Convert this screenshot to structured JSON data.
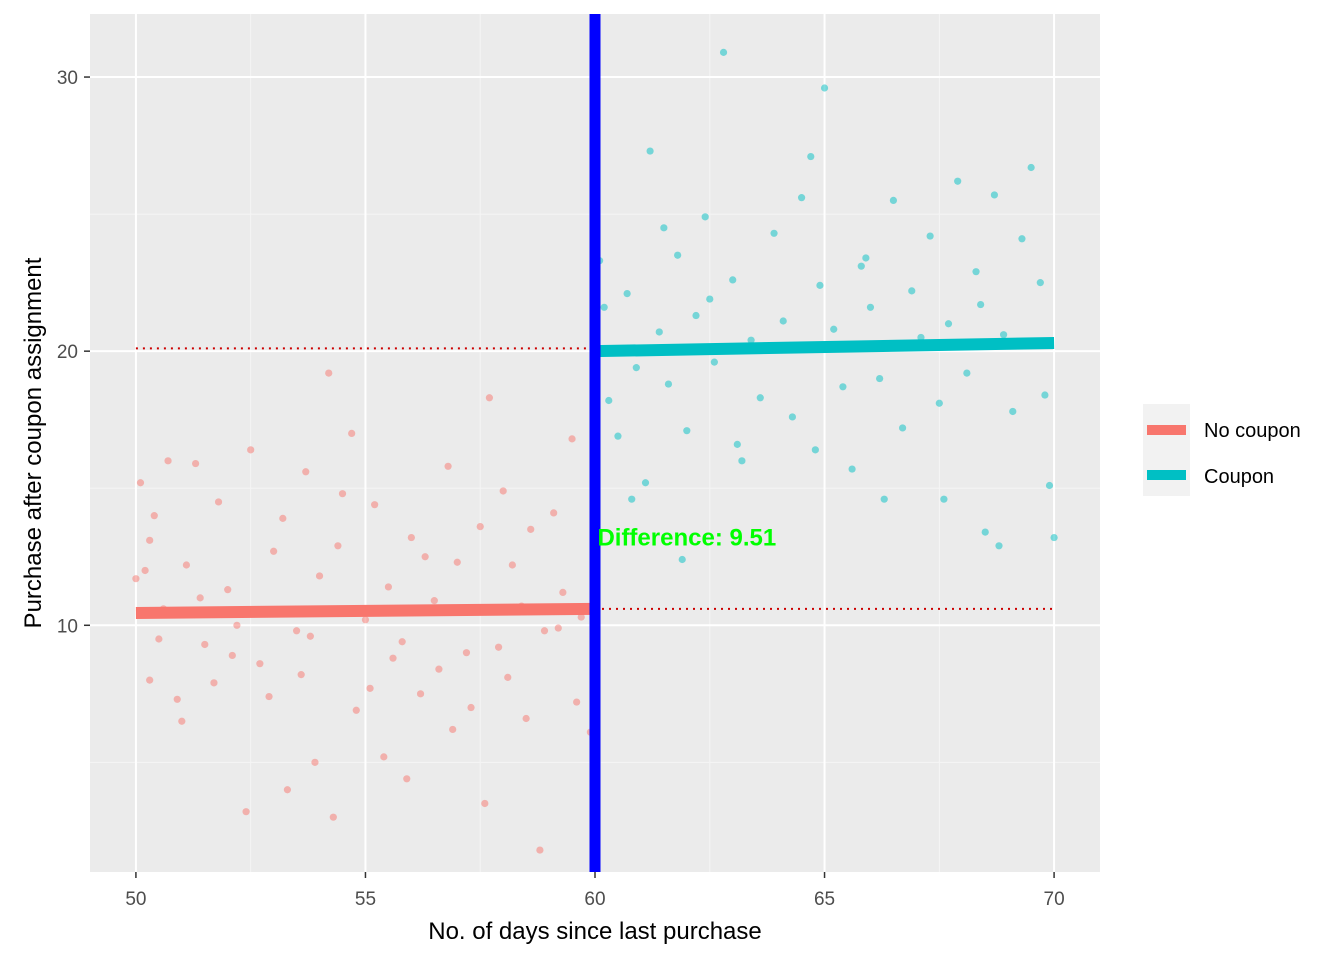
{
  "chart_data": {
    "type": "scatter",
    "title": "",
    "xlabel": "No. of days since last purchase",
    "ylabel": "Purchase after coupon assignment",
    "xlim": [
      49,
      71
    ],
    "ylim": [
      1.0,
      32.3
    ],
    "x_ticks": [
      50,
      55,
      60,
      65,
      70
    ],
    "y_ticks": [
      10,
      20,
      30
    ],
    "grid": true,
    "legend_position": "right",
    "cutoff": 60,
    "cutoff_color": "#0000FF",
    "series": [
      {
        "name": "No coupon",
        "color": "#F8766D",
        "fit_line": [
          [
            50,
            10.45
          ],
          [
            60,
            10.6
          ]
        ],
        "points": [
          [
            50.0,
            11.7
          ],
          [
            50.1,
            15.2
          ],
          [
            50.2,
            12.0
          ],
          [
            50.3,
            13.1
          ],
          [
            50.4,
            14.0
          ],
          [
            50.5,
            9.5
          ],
          [
            50.7,
            16.0
          ],
          [
            50.9,
            7.3
          ],
          [
            51.1,
            12.2
          ],
          [
            51.3,
            15.9
          ],
          [
            51.5,
            9.3
          ],
          [
            51.8,
            14.5
          ],
          [
            52.0,
            11.3
          ],
          [
            52.2,
            10.0
          ],
          [
            52.5,
            16.4
          ],
          [
            52.7,
            8.6
          ],
          [
            53.0,
            12.7
          ],
          [
            53.2,
            13.9
          ],
          [
            53.5,
            9.8
          ],
          [
            53.7,
            15.6
          ],
          [
            54.0,
            11.8
          ],
          [
            54.2,
            19.2
          ],
          [
            54.4,
            12.9
          ],
          [
            54.7,
            17.0
          ],
          [
            55.0,
            10.2
          ],
          [
            55.2,
            14.4
          ],
          [
            55.5,
            11.4
          ],
          [
            55.8,
            9.4
          ],
          [
            56.0,
            13.2
          ],
          [
            56.3,
            12.5
          ],
          [
            56.5,
            10.9
          ],
          [
            56.8,
            15.8
          ],
          [
            57.0,
            12.3
          ],
          [
            57.2,
            9.0
          ],
          [
            57.5,
            13.6
          ],
          [
            57.7,
            18.3
          ],
          [
            58.0,
            14.9
          ],
          [
            58.2,
            12.2
          ],
          [
            58.4,
            10.7
          ],
          [
            58.6,
            13.5
          ],
          [
            58.9,
            9.8
          ],
          [
            59.1,
            14.1
          ],
          [
            59.3,
            11.2
          ],
          [
            59.5,
            16.8
          ],
          [
            59.7,
            10.3
          ],
          [
            59.9,
            6.1
          ],
          [
            50.3,
            8.0
          ],
          [
            50.6,
            10.6
          ],
          [
            51.0,
            6.5
          ],
          [
            51.4,
            11.0
          ],
          [
            51.7,
            7.9
          ],
          [
            52.1,
            8.9
          ],
          [
            52.4,
            3.2
          ],
          [
            52.9,
            7.4
          ],
          [
            53.3,
            4.0
          ],
          [
            53.6,
            8.2
          ],
          [
            53.9,
            5.0
          ],
          [
            54.3,
            3.0
          ],
          [
            54.8,
            6.9
          ],
          [
            55.1,
            7.7
          ],
          [
            55.4,
            5.2
          ],
          [
            55.9,
            4.4
          ],
          [
            56.2,
            7.5
          ],
          [
            56.6,
            8.4
          ],
          [
            56.9,
            6.2
          ],
          [
            57.3,
            7.0
          ],
          [
            57.6,
            3.5
          ],
          [
            58.1,
            8.1
          ],
          [
            58.5,
            6.6
          ],
          [
            58.8,
            1.8
          ],
          [
            59.2,
            9.9
          ],
          [
            59.6,
            7.2
          ],
          [
            53.8,
            9.6
          ],
          [
            55.6,
            8.8
          ],
          [
            57.9,
            9.2
          ],
          [
            54.5,
            14.8
          ]
        ]
      },
      {
        "name": "Coupon",
        "color": "#00BFC4",
        "fit_line": [
          [
            60,
            20.0
          ],
          [
            70,
            20.3
          ]
        ],
        "points": [
          [
            60.0,
            14.3
          ],
          [
            60.1,
            23.3
          ],
          [
            60.2,
            21.6
          ],
          [
            60.3,
            18.2
          ],
          [
            60.5,
            16.9
          ],
          [
            60.7,
            22.1
          ],
          [
            60.9,
            19.4
          ],
          [
            61.1,
            15.2
          ],
          [
            61.2,
            27.3
          ],
          [
            61.4,
            20.7
          ],
          [
            61.6,
            18.8
          ],
          [
            61.8,
            23.5
          ],
          [
            62.0,
            17.1
          ],
          [
            62.2,
            21.3
          ],
          [
            62.4,
            24.9
          ],
          [
            62.6,
            19.6
          ],
          [
            62.8,
            30.9
          ],
          [
            63.0,
            22.6
          ],
          [
            63.2,
            16.0
          ],
          [
            63.4,
            20.4
          ],
          [
            63.6,
            18.3
          ],
          [
            63.9,
            24.3
          ],
          [
            64.1,
            21.1
          ],
          [
            64.3,
            17.6
          ],
          [
            64.5,
            25.6
          ],
          [
            64.7,
            27.1
          ],
          [
            64.9,
            22.4
          ],
          [
            65.0,
            29.6
          ],
          [
            65.2,
            20.8
          ],
          [
            65.4,
            18.7
          ],
          [
            65.6,
            15.7
          ],
          [
            65.8,
            23.1
          ],
          [
            66.0,
            21.6
          ],
          [
            66.2,
            19.0
          ],
          [
            66.5,
            25.5
          ],
          [
            66.7,
            17.2
          ],
          [
            66.9,
            22.2
          ],
          [
            67.1,
            20.5
          ],
          [
            67.3,
            24.2
          ],
          [
            67.5,
            18.1
          ],
          [
            67.7,
            21.0
          ],
          [
            67.9,
            26.2
          ],
          [
            68.1,
            19.2
          ],
          [
            68.3,
            22.9
          ],
          [
            68.5,
            13.4
          ],
          [
            68.7,
            25.7
          ],
          [
            68.9,
            20.6
          ],
          [
            69.1,
            17.8
          ],
          [
            69.3,
            24.1
          ],
          [
            69.5,
            26.7
          ],
          [
            69.7,
            22.5
          ],
          [
            69.8,
            18.4
          ],
          [
            70.0,
            13.2
          ],
          [
            61.9,
            12.4
          ],
          [
            60.8,
            14.6
          ],
          [
            63.1,
            16.6
          ],
          [
            64.8,
            16.4
          ],
          [
            66.3,
            14.6
          ],
          [
            67.6,
            14.6
          ],
          [
            68.8,
            12.9
          ],
          [
            69.9,
            15.1
          ],
          [
            62.5,
            21.9
          ],
          [
            65.9,
            23.4
          ],
          [
            68.4,
            21.7
          ],
          [
            61.5,
            24.5
          ]
        ]
      }
    ],
    "guide_lines": [
      {
        "y": 20.1,
        "x": [
          50,
          60
        ],
        "color": "#CC0000",
        "style": "dotted"
      },
      {
        "y": 10.6,
        "x": [
          60,
          70
        ],
        "color": "#CC0000",
        "style": "dotted"
      }
    ],
    "annotations": [
      {
        "text": "Difference: 9.51",
        "x": 62.0,
        "y": 13.2,
        "color": "#00FF00"
      }
    ]
  }
}
